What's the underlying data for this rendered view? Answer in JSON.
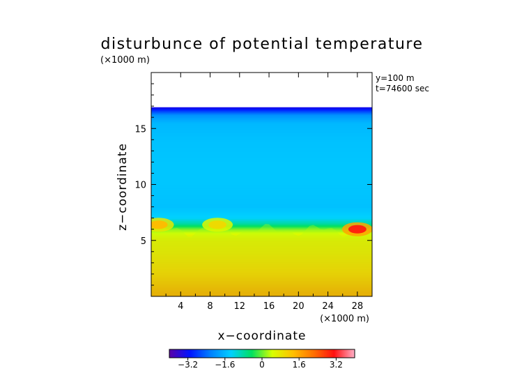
{
  "chart_data": {
    "type": "heatmap",
    "title": "disturbunce of potential temperature",
    "y_unit_label": "(×1000 m)",
    "x_unit_label": "(×1000 m)",
    "xlabel": "x−coordinate",
    "ylabel": "z−coordinate",
    "annotations": [
      "y=100  m",
      "t=74600 sec"
    ],
    "xlim": [
      0,
      30
    ],
    "ylim": [
      0,
      20
    ],
    "x_ticks": [
      4,
      8,
      12,
      16,
      20,
      24,
      28
    ],
    "x_tick_labels": [
      "4",
      "8",
      "12",
      "16",
      "20",
      "24",
      "28"
    ],
    "y_ticks": [
      5,
      10,
      15
    ],
    "y_tick_labels": [
      "5",
      "10",
      "15"
    ],
    "colorbar": {
      "range": [
        -4,
        4
      ],
      "ticks": [
        -3.2,
        -1.6,
        0,
        1.6,
        3.2
      ],
      "tick_labels": [
        "−3.2",
        "−1.6",
        "0",
        "1.6",
        "3.2"
      ],
      "colors": [
        "#5a00a8",
        "#0014ff",
        "#0080ff",
        "#00d0ff",
        "#00e060",
        "#d8ff00",
        "#ffc000",
        "#ff7000",
        "#ff1010",
        "#ffb0c8"
      ]
    },
    "field_profile": {
      "z": [
        0,
        1,
        2,
        3,
        4,
        5,
        5.5,
        6,
        6.5,
        7,
        8,
        10,
        12,
        14,
        15.5,
        16.2,
        16.6,
        16.9
      ],
      "value": [
        2.0,
        1.7,
        1.4,
        1.2,
        1.0,
        0.85,
        0.6,
        0.1,
        -0.8,
        -1.3,
        -1.5,
        -1.45,
        -1.45,
        -1.5,
        -1.6,
        -2.0,
        -2.8,
        -3.4
      ]
    },
    "data_top_z": 16.9,
    "features": [
      {
        "name": "warm anomaly left",
        "x": 1,
        "z": 6.4,
        "value": 1.4
      },
      {
        "name": "warm anomaly center-left",
        "x": 9,
        "z": 6.4,
        "value": 1.0
      },
      {
        "name": "warm anomaly right",
        "x": 28,
        "z": 6.0,
        "value": 3.0
      }
    ]
  }
}
